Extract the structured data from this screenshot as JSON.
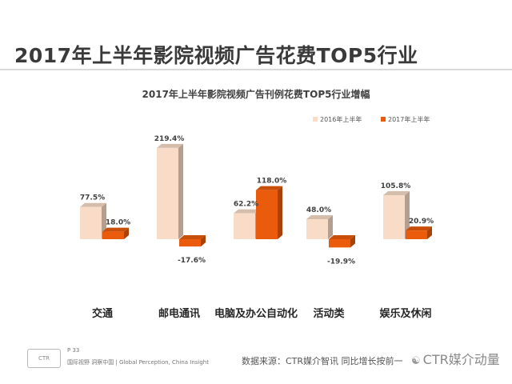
{
  "page": {
    "title": "2017年上半年影院视频广告花费TOP5行业"
  },
  "chart_data": {
    "type": "bar",
    "title": "2017年上半年影院视频广告刊例花费TOP5行业增幅",
    "categories": [
      "交通",
      "邮电通讯",
      "电脑及办公自动化",
      "活动类",
      "娱乐及休闲"
    ],
    "series": [
      {
        "name": "2016年上半年",
        "color": "#f8dcc8",
        "values": [
          77.5,
          219.4,
          62.2,
          48.0,
          105.8
        ],
        "labels": [
          "77.5%",
          "219.4%",
          "62.2%",
          "48.0%",
          "105.8%"
        ]
      },
      {
        "name": "2017年上半年",
        "color": "#ea5b0c",
        "values": [
          18.0,
          -17.6,
          118.0,
          -19.9,
          20.9
        ],
        "labels": [
          "18.0%",
          "-17.6%",
          "118.0%",
          "-19.9%",
          "20.9%"
        ]
      }
    ],
    "ylabel": "",
    "ylim": [
      -25,
      230
    ],
    "unit": "%",
    "legend_position": "top-right",
    "grid": false
  },
  "footer": {
    "page_number": "P 33",
    "badge": "CTR",
    "tagline": "国际视野 洞察中国 | Global Perception, China Insight",
    "source": "数据来源：CTR媒介智讯  同比增长按前一",
    "brand": "CTR媒介动量",
    "brand_icon": "wechat-icon"
  }
}
